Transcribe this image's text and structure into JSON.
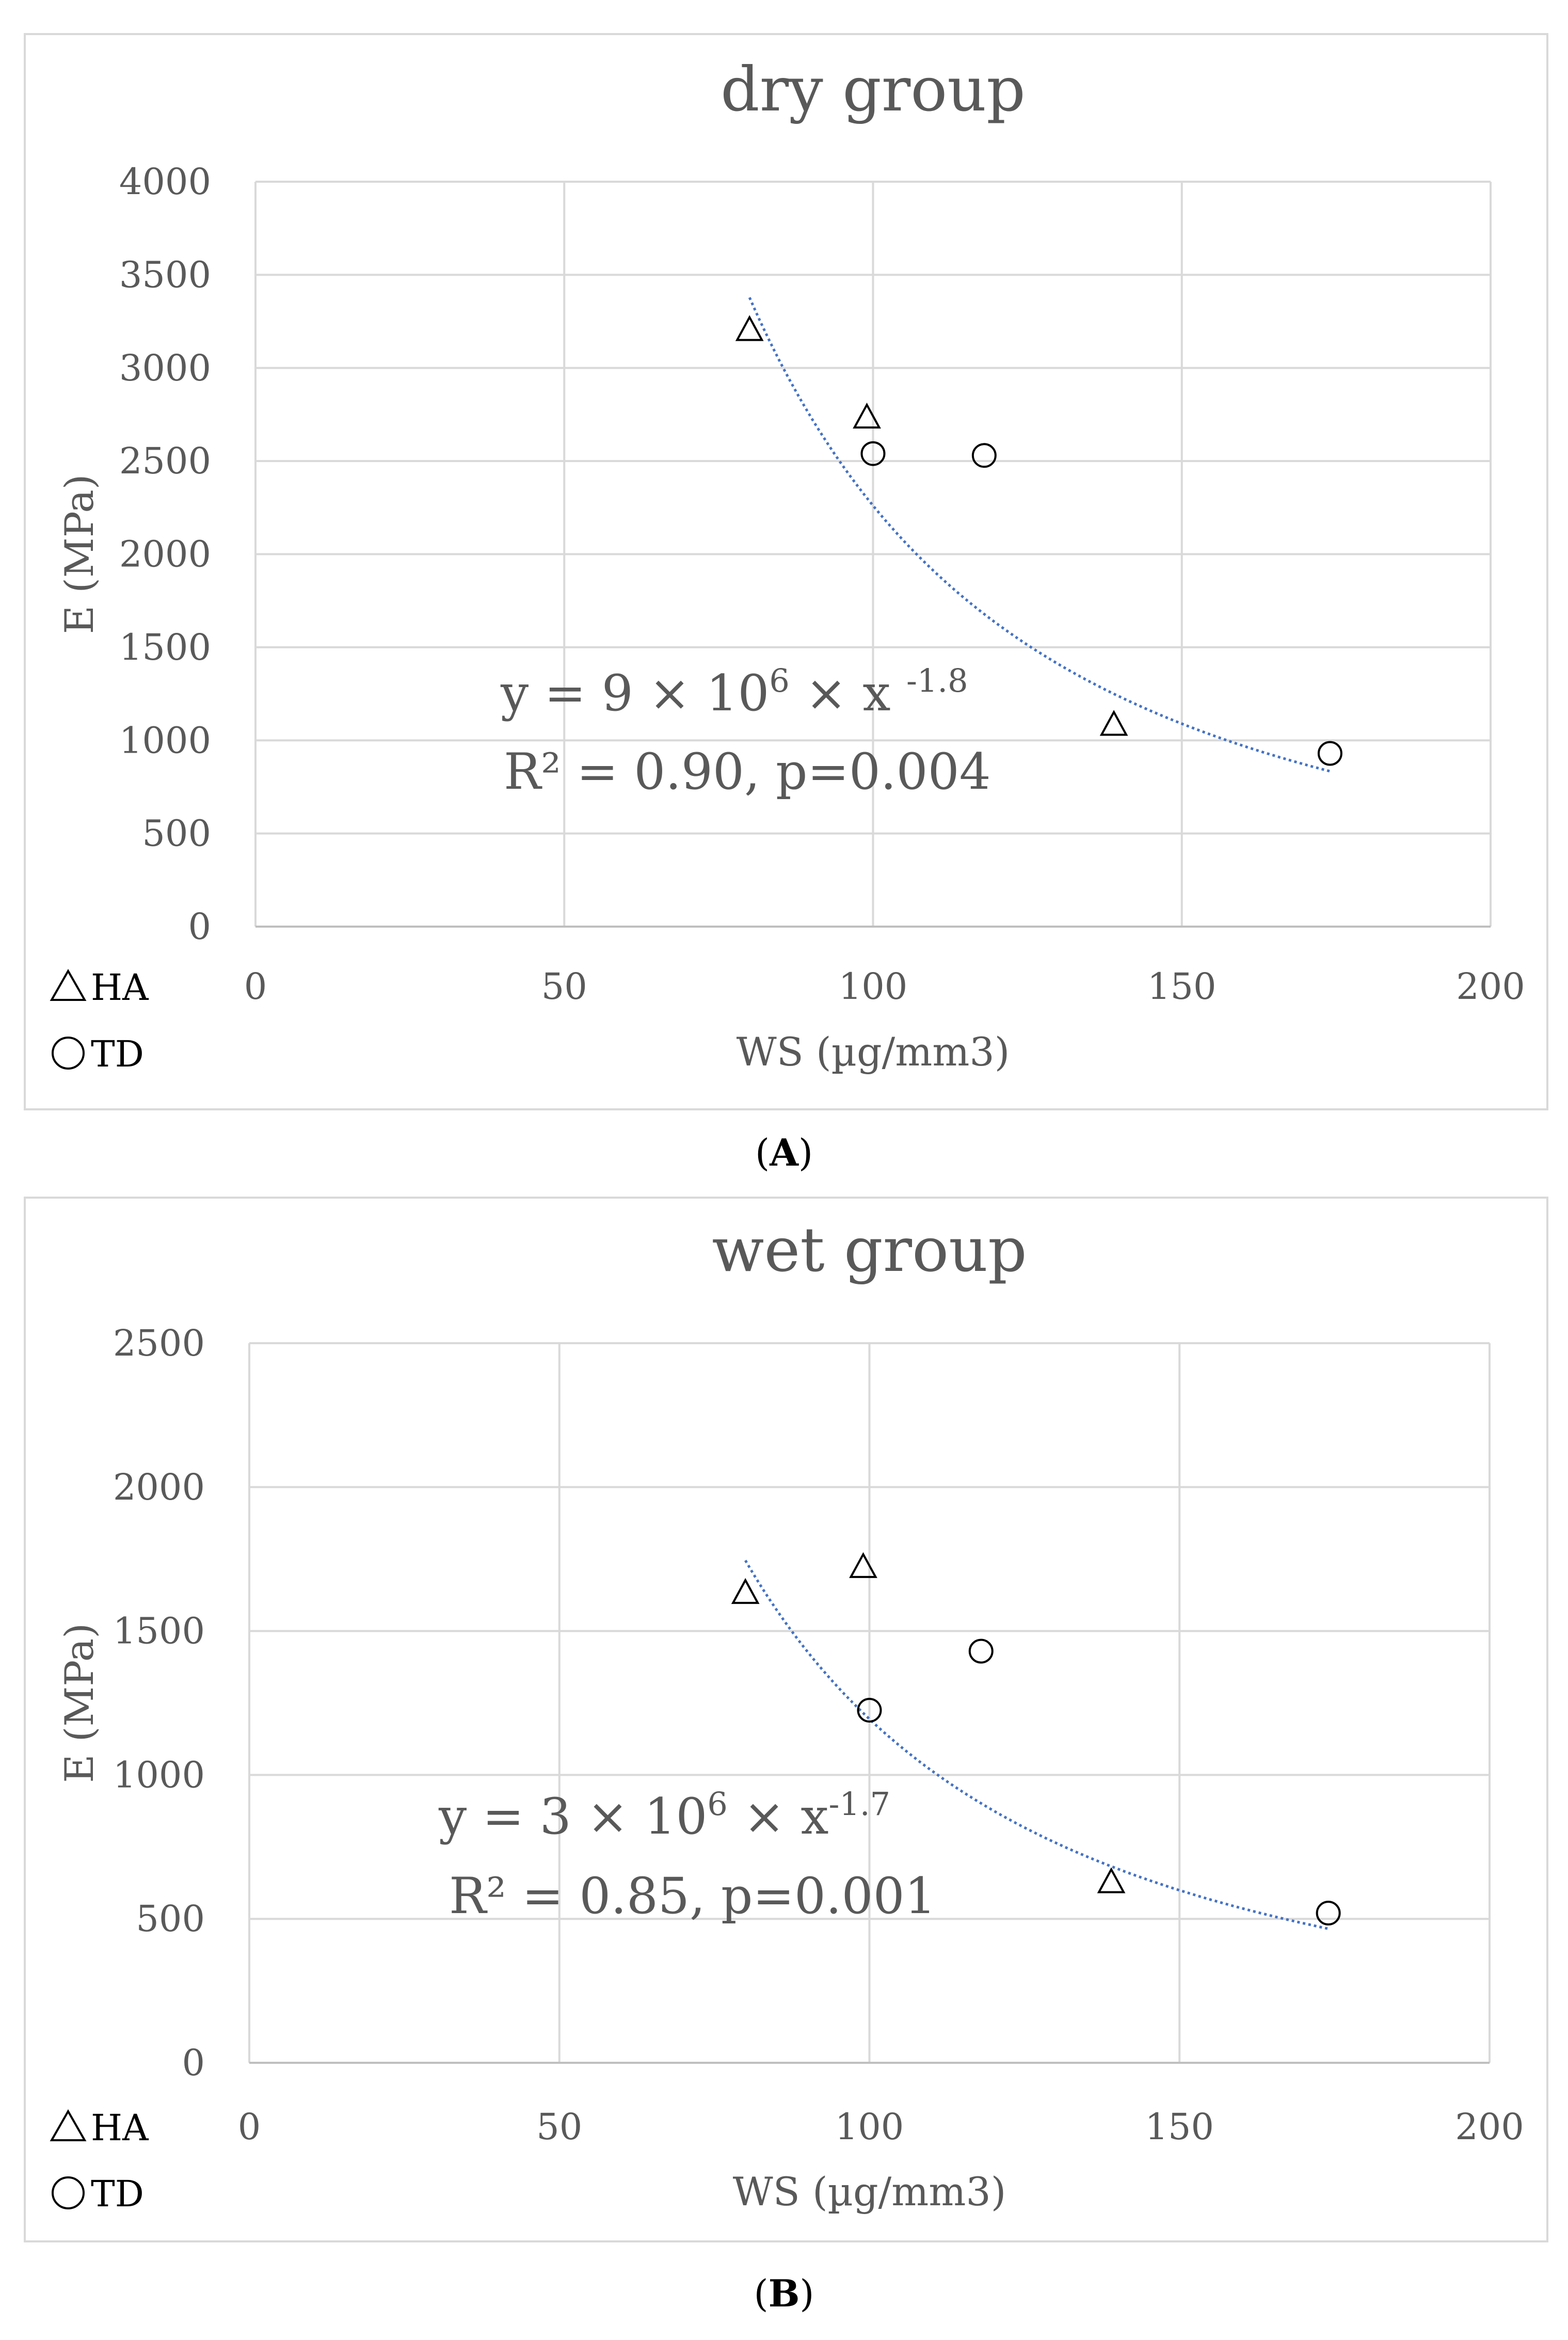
{
  "chart_data": [
    {
      "type": "scatter",
      "title": "dry group",
      "xlabel": "WS (µg/mm3)",
      "ylabel": "E (MPa)",
      "xlim": [
        0,
        200
      ],
      "ylim": [
        0,
        4000
      ],
      "x_ticks": [
        0,
        50,
        100,
        150,
        200
      ],
      "y_ticks": [
        0,
        500,
        1000,
        1500,
        2000,
        2500,
        3000,
        3500,
        4000
      ],
      "grid": true,
      "legend": [
        {
          "symbol": "triangle",
          "label": "HA"
        },
        {
          "symbol": "circle",
          "label": "TD"
        }
      ],
      "series": [
        {
          "name": "HA",
          "marker": "triangle",
          "x": [
            80,
            99,
            139
          ],
          "y": [
            3200,
            2730,
            1080
          ]
        },
        {
          "name": "TD",
          "marker": "circle",
          "x": [
            100,
            118,
            174
          ],
          "y": [
            2540,
            2530,
            930
          ]
        }
      ],
      "trendline": {
        "type": "power",
        "a": 9000000,
        "b": -1.8,
        "x_range": [
          80,
          174
        ],
        "color": "#4472c4"
      },
      "annotation_eq": {
        "lead": "y = 9 × 10",
        "exp1": "6",
        "mid": " × x ",
        "exp2": "-1.8"
      },
      "annotation_r2": "R² = 0.90, p=0.004",
      "caption_letter": "A"
    },
    {
      "type": "scatter",
      "title": "wet group",
      "xlabel": "WS (µg/mm3)",
      "ylabel": "E (MPa)",
      "xlim": [
        0,
        200
      ],
      "ylim": [
        0,
        2500
      ],
      "x_ticks": [
        0,
        50,
        100,
        150,
        200
      ],
      "y_ticks": [
        0,
        500,
        1000,
        1500,
        2000,
        2500
      ],
      "grid": true,
      "legend": [
        {
          "symbol": "triangle",
          "label": "HA"
        },
        {
          "symbol": "circle",
          "label": "TD"
        }
      ],
      "series": [
        {
          "name": "HA",
          "marker": "triangle",
          "x": [
            80,
            99,
            139
          ],
          "y": [
            1630,
            1720,
            625
          ]
        },
        {
          "name": "TD",
          "marker": "circle",
          "x": [
            100,
            118,
            174
          ],
          "y": [
            1225,
            1430,
            520
          ]
        }
      ],
      "trendline": {
        "type": "power",
        "a": 3000000,
        "b": -1.7,
        "x_range": [
          80,
          174
        ],
        "color": "#4472c4"
      },
      "annotation_eq": {
        "lead": "y = 3 × 10",
        "exp1": "6",
        "mid": " × x",
        "exp2": "-1.7"
      },
      "annotation_r2": "R² = 0.85, p=0.001",
      "caption_letter": "B"
    }
  ]
}
